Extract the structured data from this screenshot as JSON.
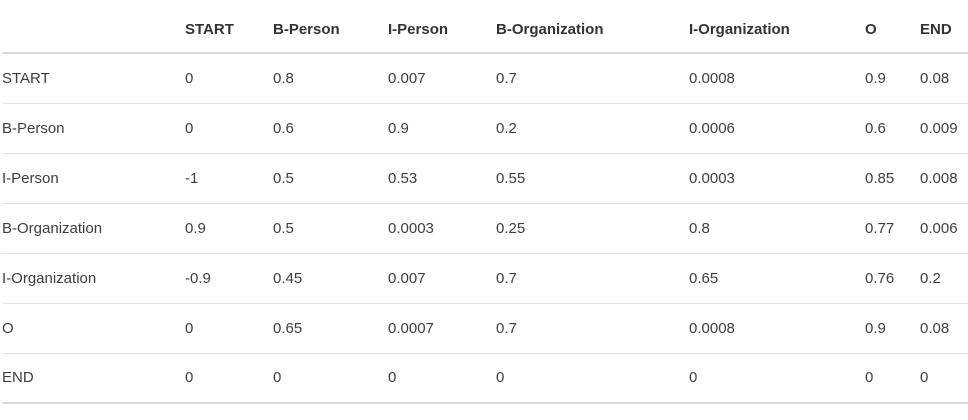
{
  "chart_data": {
    "type": "table",
    "title": "",
    "columns": [
      "",
      "START",
      "B-Person",
      "I-Person",
      "B-Organization",
      "I-Organization",
      "O",
      "END"
    ],
    "rows": [
      [
        "START",
        0,
        0.8,
        0.007,
        0.7,
        0.0008,
        0.9,
        0.08
      ],
      [
        "B-Person",
        0,
        0.6,
        0.9,
        0.2,
        0.0006,
        0.6,
        0.009
      ],
      [
        "I-Person",
        -1,
        0.5,
        0.53,
        0.55,
        0.0003,
        0.85,
        0.008
      ],
      [
        "B-Organization",
        0.9,
        0.5,
        0.0003,
        0.25,
        0.8,
        0.77,
        0.006
      ],
      [
        "I-Organization",
        -0.9,
        0.45,
        0.007,
        0.7,
        0.65,
        0.76,
        0.2
      ],
      [
        "O",
        0,
        0.65,
        0.0007,
        0.7,
        0.0008,
        0.9,
        0.08
      ],
      [
        "END",
        0,
        0,
        0,
        0,
        0,
        0,
        0
      ]
    ],
    "layout": {
      "grid": "horizontal-row-dividers",
      "header_row": true
    }
  },
  "colors": {
    "background": "#ffffff",
    "text": "#3d3d3d",
    "header_text": "#333333",
    "header_border": "#d9d9d9",
    "row_border": "#e3e3e3"
  }
}
